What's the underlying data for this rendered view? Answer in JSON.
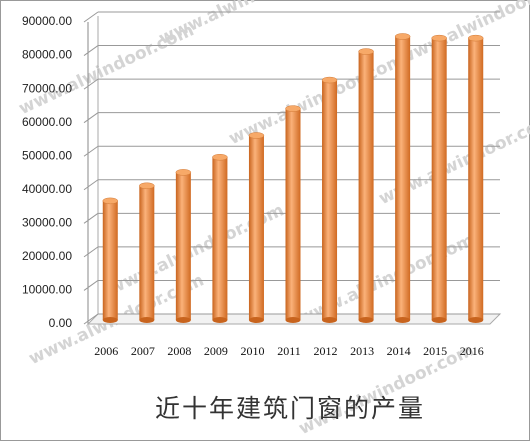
{
  "chart_data": {
    "type": "bar",
    "title": "近十年建筑门窗的产量",
    "watermark": "www.alwindoor.com",
    "categories": [
      "2006",
      "2007",
      "2008",
      "2009",
      "2010",
      "2011",
      "2012",
      "2013",
      "2014",
      "2015",
      "2016"
    ],
    "values": [
      35500,
      40000,
      44000,
      48500,
      55000,
      63000,
      71500,
      80000,
      84500,
      84000,
      84000
    ],
    "color": "#f0913c",
    "ylim": [
      0,
      90000
    ],
    "yticks": [
      {
        "value": 0,
        "label": "0.00"
      },
      {
        "value": 10000,
        "label": "10000.00"
      },
      {
        "value": 20000,
        "label": "20000.00"
      },
      {
        "value": 30000,
        "label": "30000.00"
      },
      {
        "value": 40000,
        "label": "40000.00"
      },
      {
        "value": 50000,
        "label": "50000.00"
      },
      {
        "value": 60000,
        "label": "60000.00"
      },
      {
        "value": 70000,
        "label": "70000.00"
      },
      {
        "value": 80000,
        "label": "80000.00"
      },
      {
        "value": 90000,
        "label": "90000.00"
      }
    ],
    "grid": true
  }
}
